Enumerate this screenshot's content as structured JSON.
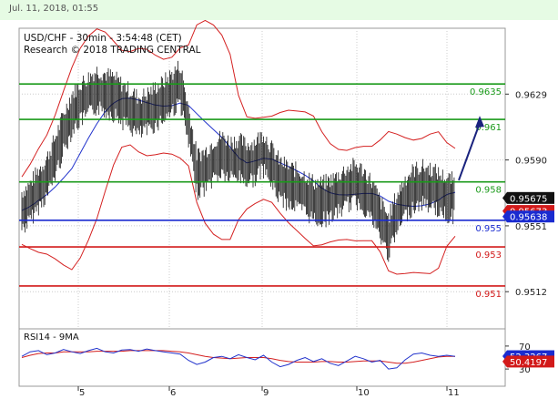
{
  "header": {
    "datetime": "Jul. 11, 2018, 01:55"
  },
  "chart_data": {
    "type": "line",
    "title": "USD/CHF - 30min - 3:54:48 (CET)",
    "subtitle": "Research © 2018 TRADING CENTRAL",
    "x_ticks": [
      "5",
      "6",
      "9",
      "10",
      "11"
    ],
    "ylim": [
      0.949,
      0.9668
    ],
    "y_ticks": [
      "0.9629",
      "0.9590",
      "0.9551",
      "0.9512"
    ],
    "levels": [
      {
        "label": "0.9635",
        "value": 0.9635,
        "color": "#1a9a1a"
      },
      {
        "label": "0.961",
        "value": 0.9614,
        "color": "#1a9a1a"
      },
      {
        "label": "0.958",
        "value": 0.9577,
        "color": "#1a9a1a"
      },
      {
        "label": "0.955",
        "value": 0.95543,
        "color": "#1a2bd0"
      },
      {
        "label": "0.953",
        "value": 0.95385,
        "color": "#d21a1a"
      },
      {
        "label": "0.951",
        "value": 0.95154,
        "color": "#d21a1a"
      }
    ],
    "price_tags": [
      {
        "label": "0.95675",
        "value": 0.95675,
        "bg": "#111111"
      },
      {
        "label": "0.95673",
        "value": 0.95598,
        "bg": "#d21a1a"
      },
      {
        "label": "0.95638",
        "value": 0.95565,
        "bg": "#1a2bd0"
      }
    ],
    "close_series": [
      0.956,
      0.9565,
      0.9573,
      0.958,
      0.9592,
      0.9606,
      0.9618,
      0.9624,
      0.9628,
      0.9632,
      0.963,
      0.9628,
      0.9624,
      0.962,
      0.9616,
      0.9618,
      0.9622,
      0.9625,
      0.963,
      0.9635,
      0.961,
      0.9582,
      0.9584,
      0.959,
      0.9593,
      0.959,
      0.9591,
      0.9588,
      0.959,
      0.9595,
      0.9586,
      0.9578,
      0.9575,
      0.9573,
      0.957,
      0.9566,
      0.9565,
      0.9567,
      0.957,
      0.9574,
      0.9576,
      0.9573,
      0.9566,
      0.9555,
      0.9545,
      0.9558,
      0.9568,
      0.9573,
      0.9575,
      0.9574,
      0.9571,
      0.9568,
      0.9567
    ],
    "arrow": {
      "from_index": 53,
      "from": 0.9578,
      "to_index": 58,
      "to": 0.9614
    },
    "rsi": {
      "title": "RSI14 - 9MA",
      "ylim": [
        0,
        100
      ],
      "y_ticks": [
        "70",
        "30"
      ],
      "tags": [
        {
          "label": "52.3267",
          "value": 52.33,
          "bg": "#1a2bd0"
        },
        {
          "label": "50.4197",
          "value": 43,
          "bg": "#d21a1a"
        }
      ],
      "series": [
        52,
        60,
        62,
        55,
        58,
        64,
        60,
        57,
        62,
        66,
        60,
        58,
        63,
        64,
        61,
        65,
        62,
        60,
        58,
        56,
        45,
        38,
        42,
        50,
        52,
        48,
        55,
        50,
        46,
        54,
        42,
        34,
        38,
        45,
        50,
        43,
        48,
        40,
        36,
        44,
        52,
        48,
        42,
        45,
        30,
        32,
        46,
        56,
        58,
        54,
        52,
        54,
        52
      ],
      "ma": [
        50,
        54,
        57,
        58,
        58,
        60,
        60,
        60,
        60,
        61,
        61,
        61,
        61,
        62,
        62,
        62,
        62,
        62,
        61,
        60,
        58,
        55,
        52,
        50,
        49,
        48,
        49,
        50,
        50,
        50,
        48,
        45,
        43,
        42,
        42,
        42,
        43,
        43,
        42,
        42,
        43,
        44,
        44,
        44,
        42,
        40,
        40,
        42,
        45,
        48,
        51,
        52,
        52
      ]
    }
  }
}
